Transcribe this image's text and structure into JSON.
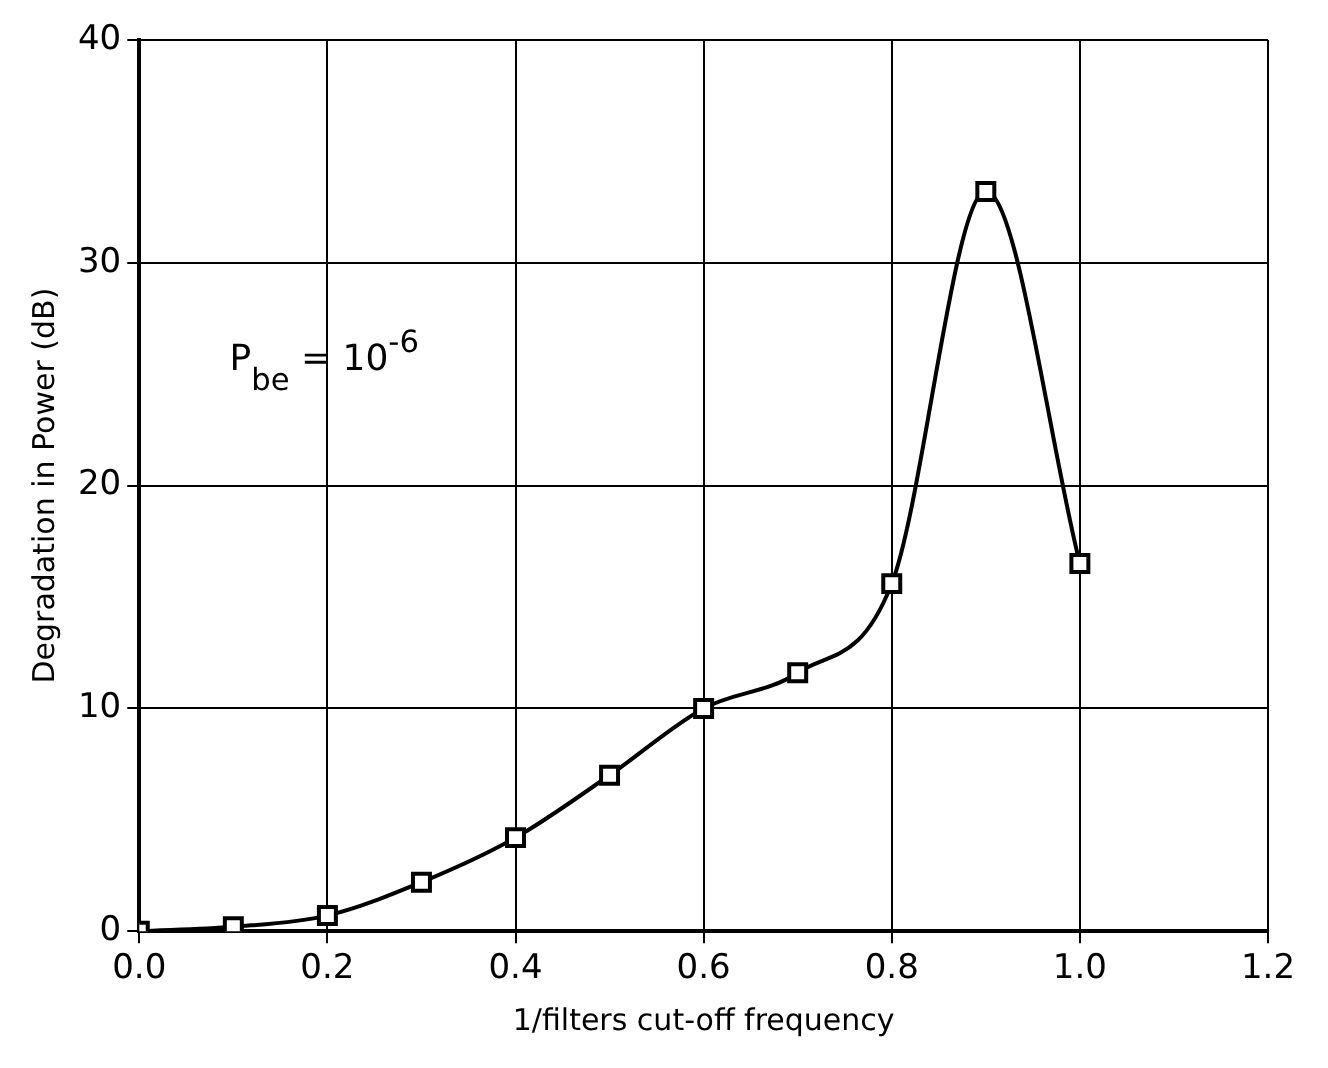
{
  "chart_data": {
    "type": "line",
    "xlabel": "1/filters cut-off frequency",
    "ylabel": "Degradation in Power (dB)",
    "x": [
      0.0,
      0.1,
      0.2,
      0.3,
      0.4,
      0.5,
      0.6,
      0.7,
      0.8,
      0.9,
      1.0
    ],
    "series": [
      {
        "color": "#000000",
        "values": [
          0,
          0.2,
          0.7,
          2.2,
          4.2,
          7.0,
          10.0,
          11.6,
          15.6,
          33.2,
          16.5
        ]
      }
    ],
    "xlim": [
      0,
      1.2
    ],
    "xticks": [
      {
        "value": 0,
        "label": "0.0"
      },
      0.2,
      0.4,
      0.6,
      0.8,
      {
        "value": 1,
        "label": "1.0"
      },
      1.2
    ],
    "ylim": [
      0,
      40
    ],
    "yticks": [
      0,
      10,
      20,
      30,
      40
    ],
    "annotations": [
      "P$_{be}$ = 10$^{-6}$"
    ],
    "grid": true,
    "legend": false,
    "marker": "square",
    "line_style": "solid"
  }
}
